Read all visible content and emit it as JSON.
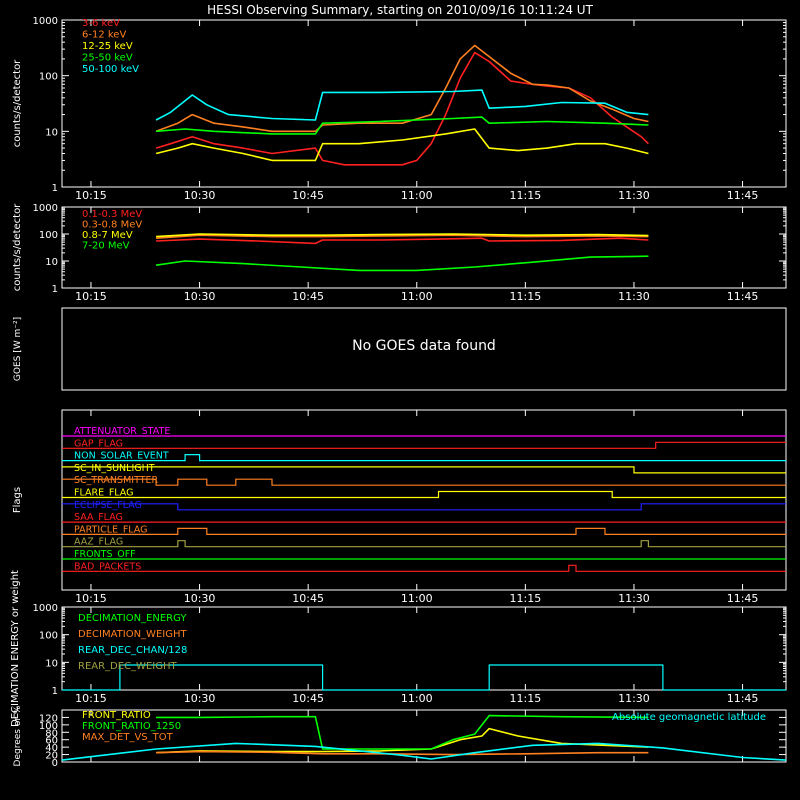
{
  "title": "HESSI Observing Summary, starting on 2010/09/16 10:11:24 UT",
  "time_ticks": [
    "10:15",
    "10:30",
    "10:45",
    "11:00",
    "11:15",
    "11:30",
    "11:45"
  ],
  "colors": {
    "background": "#000000",
    "axis": "#ffffff",
    "red": "#ff2020",
    "orange": "#ff8020",
    "yellow": "#ffff00",
    "green": "#00ff00",
    "cyan": "#00ffff",
    "magenta": "#ff00ff",
    "blue": "#2020ff",
    "olive": "#a0a040"
  },
  "chart_data": [
    {
      "id": "lo",
      "type": "line",
      "ylabel": "counts/s/detector",
      "yscale": "log",
      "ylim": [
        1,
        1000
      ],
      "yticks": [
        "1",
        "10",
        "100",
        "1000"
      ],
      "x_range": [
        "10:11",
        "11:51"
      ],
      "legend_position": "top-left",
      "series": [
        {
          "name": "3-6 keV",
          "color": "red",
          "x": [
            "10:24",
            "10:26",
            "10:29",
            "10:32",
            "10:36",
            "10:40",
            "10:46",
            "10:47",
            "10:50",
            "10:54",
            "10:58",
            "11:00",
            "11:02",
            "11:04",
            "11:06",
            "11:08",
            "11:10",
            "11:13",
            "11:16",
            "11:18",
            "11:21",
            "11:24",
            "11:27",
            "11:29",
            "11:31",
            "11:32"
          ],
          "y": [
            5,
            6,
            8,
            6,
            5,
            4,
            5,
            3,
            2.5,
            2.5,
            2.5,
            3,
            6,
            20,
            90,
            260,
            180,
            80,
            70,
            65,
            60,
            40,
            18,
            12,
            8,
            6
          ]
        },
        {
          "name": "6-12 keV",
          "color": "orange",
          "x": [
            "10:24",
            "10:27",
            "10:29",
            "10:32",
            "10:36",
            "10:40",
            "10:46",
            "10:47",
            "10:52",
            "10:58",
            "11:02",
            "11:04",
            "11:06",
            "11:08",
            "11:10",
            "11:13",
            "11:16",
            "11:18",
            "11:21",
            "11:24",
            "11:27",
            "11:30",
            "11:32"
          ],
          "y": [
            10,
            14,
            20,
            14,
            12,
            10,
            10,
            13,
            14,
            14,
            20,
            60,
            200,
            350,
            220,
            110,
            70,
            68,
            60,
            35,
            25,
            17,
            15
          ]
        },
        {
          "name": "12-25 keV",
          "color": "yellow",
          "x": [
            "10:24",
            "10:27",
            "10:29",
            "10:32",
            "10:36",
            "10:40",
            "10:46",
            "10:47",
            "10:52",
            "10:58",
            "11:04",
            "11:08",
            "11:10",
            "11:14",
            "11:18",
            "11:22",
            "11:26",
            "11:29",
            "11:32"
          ],
          "y": [
            4,
            5,
            6,
            5,
            4,
            3,
            3,
            6,
            6,
            7,
            9,
            11,
            5,
            4.5,
            5,
            6,
            6,
            5,
            4
          ]
        },
        {
          "name": "25-50 keV",
          "color": "green",
          "x": [
            "10:24",
            "10:28",
            "10:32",
            "10:40",
            "10:46",
            "10:47",
            "10:55",
            "11:05",
            "11:09",
            "11:10",
            "11:18",
            "11:26",
            "11:32"
          ],
          "y": [
            10,
            11,
            10,
            9,
            9,
            14,
            15,
            17,
            18,
            14,
            15,
            14,
            13
          ]
        },
        {
          "name": "50-100 keV",
          "color": "cyan",
          "x": [
            "10:24",
            "10:26",
            "10:29",
            "10:31",
            "10:34",
            "10:40",
            "10:46",
            "10:47",
            "10:55",
            "11:05",
            "11:09",
            "11:10",
            "11:15",
            "11:20",
            "11:26",
            "11:29",
            "11:32"
          ],
          "y": [
            16,
            22,
            45,
            30,
            20,
            17,
            16,
            50,
            50,
            52,
            55,
            26,
            28,
            33,
            32,
            22,
            20
          ]
        }
      ]
    },
    {
      "id": "hi",
      "type": "line",
      "ylabel": "counts/s/detector",
      "yscale": "log",
      "ylim": [
        1,
        1000
      ],
      "yticks": [
        "1",
        "10",
        "100",
        "1000"
      ],
      "x_range": [
        "10:11",
        "11:51"
      ],
      "legend_position": "top-left",
      "series": [
        {
          "name": "0.1-0.3 MeV",
          "color": "red",
          "x": [
            "10:24",
            "10:30",
            "10:38",
            "10:46",
            "10:47",
            "10:55",
            "11:03",
            "11:09",
            "11:10",
            "11:20",
            "11:28",
            "11:32"
          ],
          "y": [
            55,
            65,
            55,
            45,
            60,
            60,
            65,
            70,
            55,
            58,
            70,
            60
          ]
        },
        {
          "name": "0.3-0.8 MeV",
          "color": "orange",
          "x": [
            "10:24",
            "10:30",
            "10:40",
            "10:47",
            "10:55",
            "11:05",
            "11:15",
            "11:25",
            "11:32"
          ],
          "y": [
            70,
            90,
            80,
            80,
            85,
            90,
            80,
            85,
            80
          ]
        },
        {
          "name": "0.8-7 MeV",
          "color": "yellow",
          "x": [
            "10:24",
            "10:30",
            "10:40",
            "10:47",
            "10:55",
            "11:05",
            "11:15",
            "11:25",
            "11:32"
          ],
          "y": [
            80,
            100,
            90,
            90,
            95,
            100,
            90,
            95,
            88
          ]
        },
        {
          "name": "7-20 MeV",
          "color": "green",
          "x": [
            "10:24",
            "10:28",
            "10:36",
            "10:44",
            "10:52",
            "11:00",
            "11:08",
            "11:16",
            "11:24",
            "11:32"
          ],
          "y": [
            7,
            10,
            8,
            6,
            4.5,
            4.5,
            6,
            9,
            14,
            15
          ]
        }
      ]
    },
    {
      "id": "goes",
      "type": "line",
      "ylabel": "GOES [W m⁻²]",
      "message": "No GOES data found",
      "series": []
    },
    {
      "id": "flags",
      "type": "line",
      "ylabel": "Flags",
      "x_range": [
        "10:11",
        "11:51"
      ],
      "series": [
        {
          "name": "ATTENUATOR_STATE",
          "color": "magenta",
          "x": [
            "10:11",
            "11:51"
          ],
          "y": [
            0,
            0
          ]
        },
        {
          "name": "GAP_FLAG",
          "color": "red",
          "x": [
            "10:11",
            "11:33",
            "11:33",
            "11:51"
          ],
          "y": [
            0,
            0,
            1,
            1
          ]
        },
        {
          "name": "NON_SOLAR_EVENT",
          "color": "cyan",
          "x": [
            "10:11",
            "10:28",
            "10:28",
            "10:30",
            "10:30",
            "11:51"
          ],
          "y": [
            0,
            0,
            1,
            1,
            0,
            0
          ]
        },
        {
          "name": "SC_IN_SUNLIGHT",
          "color": "yellow",
          "x": [
            "10:11",
            "11:30",
            "11:30",
            "11:51"
          ],
          "y": [
            1,
            1,
            0,
            0
          ]
        },
        {
          "name": "SC_TRANSMITTER",
          "color": "orange",
          "x": [
            "10:11",
            "10:24",
            "10:24",
            "10:27",
            "10:27",
            "10:31",
            "10:31",
            "10:35",
            "10:35",
            "10:40",
            "10:40",
            "11:51"
          ],
          "y": [
            1,
            1,
            0,
            0,
            1,
            1,
            0,
            0,
            1,
            1,
            0,
            0
          ]
        },
        {
          "name": "FLARE_FLAG",
          "color": "yellow",
          "x": [
            "10:11",
            "11:03",
            "11:03",
            "11:27",
            "11:27",
            "11:51"
          ],
          "y": [
            0,
            0,
            1,
            1,
            0,
            0
          ]
        },
        {
          "name": "ECLIPSE_FLAG",
          "color": "blue",
          "x": [
            "10:11",
            "10:27",
            "10:27",
            "11:31",
            "11:31",
            "11:51"
          ],
          "y": [
            1,
            1,
            0,
            0,
            1,
            1
          ]
        },
        {
          "name": "SAA_FLAG",
          "color": "red",
          "x": [
            "10:11",
            "11:51"
          ],
          "y": [
            0,
            0
          ]
        },
        {
          "name": "PARTICLE_FLAG",
          "color": "orange",
          "x": [
            "10:11",
            "10:27",
            "10:27",
            "10:31",
            "10:31",
            "11:22",
            "11:22",
            "11:26",
            "11:26",
            "11:51"
          ],
          "y": [
            0,
            0,
            1,
            1,
            0,
            0,
            1,
            1,
            0,
            0
          ]
        },
        {
          "name": "AAZ_FLAG",
          "color": "olive",
          "x": [
            "10:11",
            "10:27",
            "10:27",
            "10:28",
            "10:28",
            "11:31",
            "11:31",
            "11:32",
            "11:32",
            "11:51"
          ],
          "y": [
            0,
            0,
            1,
            1,
            0,
            0,
            1,
            1,
            0,
            0
          ]
        },
        {
          "name": "FRONTS_OFF",
          "color": "green",
          "x": [
            "10:11",
            "11:51"
          ],
          "y": [
            0,
            0
          ]
        },
        {
          "name": "BAD_PACKETS",
          "color": "red",
          "x": [
            "10:11",
            "11:21",
            "11:21",
            "11:22",
            "11:22",
            "11:51"
          ],
          "y": [
            0,
            0,
            1,
            1,
            0,
            0
          ]
        }
      ]
    },
    {
      "id": "dec",
      "type": "line",
      "ylabel": "DECIMATION ENERGY or weight",
      "yscale": "log",
      "ylim": [
        1,
        1000
      ],
      "yticks": [
        "1",
        "10",
        "100",
        "1000"
      ],
      "x_range": [
        "10:11",
        "11:51"
      ],
      "legend_position": "top-left",
      "series": [
        {
          "name": "DECIMATION_ENERGY",
          "color": "green",
          "x": [],
          "y": []
        },
        {
          "name": "DECIMATION_WEIGHT",
          "color": "orange",
          "x": [],
          "y": []
        },
        {
          "name": "REAR_DEC_CHAN/128",
          "color": "cyan",
          "x": [
            "10:11",
            "10:19",
            "10:19",
            "10:47",
            "10:47",
            "11:10",
            "11:10",
            "11:34",
            "11:34",
            "11:51"
          ],
          "y": [
            1,
            1,
            8,
            8,
            1,
            1,
            8,
            8,
            1,
            1
          ]
        },
        {
          "name": "REAR_DEC_WEIGHT",
          "color": "olive",
          "x": [],
          "y": []
        }
      ]
    },
    {
      "id": "ratio",
      "type": "line",
      "ylabel": "Degrees or %",
      "ylim": [
        0,
        140
      ],
      "yticks": [
        "0",
        "20",
        "40",
        "60",
        "80",
        "100",
        "120"
      ],
      "x_range": [
        "10:11",
        "11:51"
      ],
      "series": [
        {
          "name": "FRONT_RATIO",
          "color": "yellow",
          "x": [
            "10:24",
            "10:30",
            "10:40",
            "10:47",
            "10:55",
            "11:02",
            "11:06",
            "11:09",
            "11:10",
            "11:14",
            "11:20",
            "11:26",
            "11:32"
          ],
          "y": [
            25,
            30,
            28,
            28,
            30,
            35,
            60,
            70,
            90,
            70,
            50,
            45,
            40
          ]
        },
        {
          "name": "FRONT_RATIO_1250",
          "color": "green",
          "x": [
            "10:24",
            "10:30",
            "10:40",
            "10:46",
            "10:47",
            "10:55",
            "11:02",
            "11:05",
            "11:08",
            "11:10",
            "11:20",
            "11:32"
          ],
          "y": [
            120,
            120,
            122,
            122,
            35,
            35,
            35,
            60,
            75,
            125,
            122,
            120
          ]
        },
        {
          "name": "MAX_DET_VS_TOT",
          "color": "orange",
          "x": [
            "10:24",
            "10:30",
            "10:40",
            "10:47",
            "10:55",
            "11:05",
            "11:15",
            "11:25",
            "11:32"
          ],
          "y": [
            25,
            28,
            26,
            22,
            22,
            20,
            22,
            25,
            25
          ]
        },
        {
          "name": "Absolute geomagnetic latitude",
          "color": "cyan",
          "x": [
            "10:11",
            "10:24",
            "10:35",
            "10:46",
            "10:58",
            "11:02",
            "11:08",
            "11:16",
            "11:25",
            "11:34",
            "11:45",
            "11:51"
          ],
          "y": [
            5,
            35,
            50,
            42,
            18,
            8,
            25,
            45,
            50,
            38,
            12,
            5
          ]
        }
      ]
    }
  ]
}
